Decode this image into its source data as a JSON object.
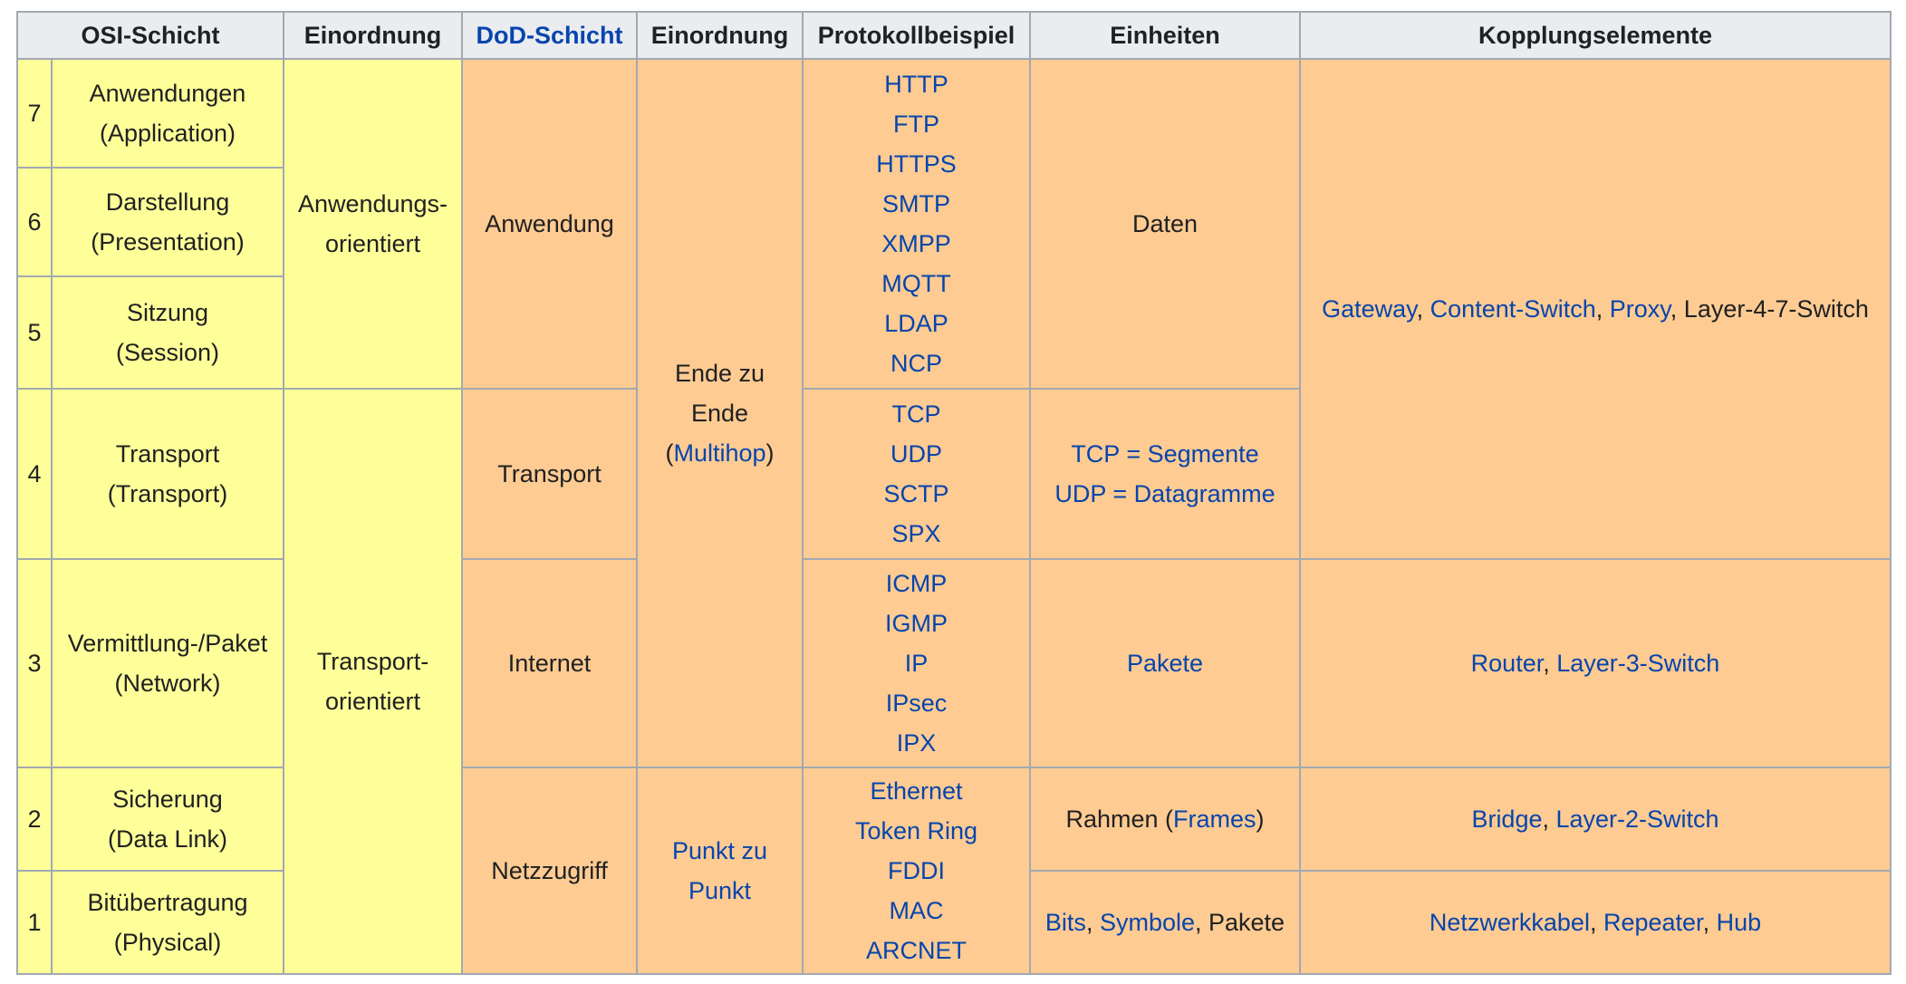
{
  "headers": {
    "osi_layer": "OSI-Schicht",
    "classification_1": "Einordnung",
    "dod_layer": "DoD-Schicht",
    "classification_2": "Einordnung",
    "protocol_example": "Protokollbeispiel",
    "units": "Einheiten",
    "coupling_elements": "Kopplungselemente"
  },
  "layers": [
    {
      "num": "7",
      "name": "Anwendungen",
      "en": "(Application)"
    },
    {
      "num": "6",
      "name": "Darstellung",
      "en": "(Presentation)"
    },
    {
      "num": "5",
      "name": "Sitzung",
      "en": "(Session)"
    },
    {
      "num": "4",
      "name": "Transport",
      "en": "(Transport)"
    },
    {
      "num": "3",
      "name": "Vermittlung-/Paket",
      "en": "(Network)"
    },
    {
      "num": "2",
      "name": "Sicherung",
      "en": "(Data Link)"
    },
    {
      "num": "1",
      "name": "Bitübertragung",
      "en": "(Physical)"
    }
  ],
  "classification_osi": {
    "application_l1": "Anwendungs-",
    "application_l2": "orientiert",
    "transport_l1": "Transport-",
    "transport_l2": "orientiert"
  },
  "dod": {
    "application": "Anwendung",
    "transport": "Transport",
    "internet": "Internet",
    "network_access": "Netzzugriff"
  },
  "classification_dod": {
    "e2e_l1": "Ende zu",
    "e2e_l2": "Ende",
    "e2e_paren_open": "(",
    "e2e_link": "Multihop",
    "e2e_paren_close": ")",
    "p2p_l1": "Punkt zu",
    "p2p_l2": "Punkt"
  },
  "protocols": {
    "application": [
      "HTTP",
      "FTP",
      "HTTPS",
      "SMTP",
      "XMPP",
      "MQTT",
      "LDAP",
      "NCP"
    ],
    "transport": [
      "TCP",
      "UDP",
      "SCTP",
      "SPX"
    ],
    "internet": [
      "ICMP",
      "IGMP",
      "IP",
      "IPsec",
      "IPX"
    ],
    "network_access": [
      "Ethernet",
      "Token Ring",
      "FDDI",
      "MAC",
      "ARCNET"
    ]
  },
  "units": {
    "application": "Daten",
    "transport_l1": "TCP = Segmente",
    "transport_l2": "UDP = Datagramme",
    "internet": "Pakete",
    "datalink_text": "Rahmen (",
    "datalink_link": "Frames",
    "datalink_close": ")",
    "physical_bits": "Bits",
    "physical_sep1": ", ",
    "physical_symbols": "Symbole",
    "physical_sep2": ", Pakete"
  },
  "coupling": {
    "upper": {
      "gateway": "Gateway",
      "sep1": ", ",
      "content_switch": "Content-Switch",
      "sep2": ", ",
      "proxy": "Proxy",
      "tail": ", Layer-4-7-Switch"
    },
    "network": {
      "router": "Router",
      "sep": ", ",
      "layer3": "Layer-3-Switch"
    },
    "datalink": {
      "bridge": "Bridge",
      "sep": ", ",
      "layer2": "Layer-2-Switch"
    },
    "physical": {
      "cable": "Netzwerkkabel",
      "sep1": ", ",
      "repeater": "Repeater",
      "sep2": ", ",
      "hub": "Hub"
    }
  },
  "colors": {
    "yellow": "#ffff99",
    "orange": "#fecb92",
    "header": "#eaecf0",
    "link": "#0645ad",
    "border": "#a2a9b1"
  }
}
